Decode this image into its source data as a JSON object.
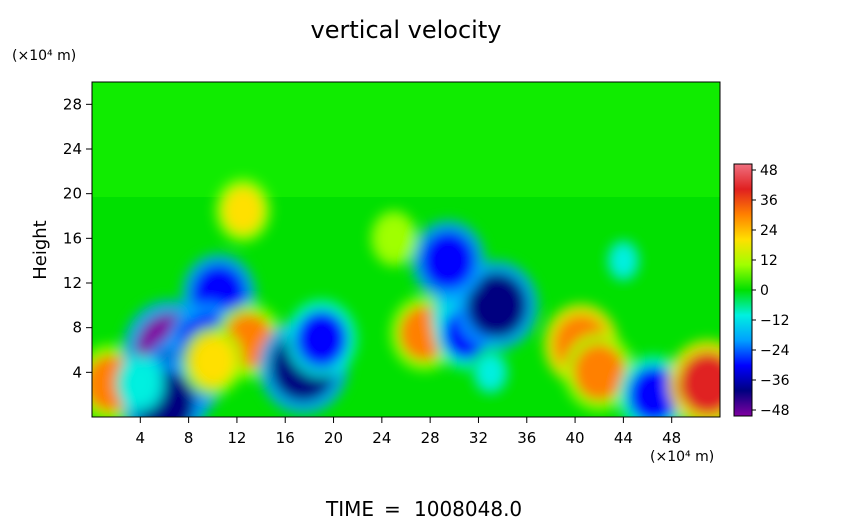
{
  "chart_data": {
    "type": "heatmap",
    "title": "vertical velocity",
    "ylabel": "Height",
    "y_unit_label": "(×10⁴ m)",
    "x_unit_label": "(×10⁴ m)",
    "xlim": [
      0,
      52
    ],
    "ylim": [
      0,
      30
    ],
    "x_ticks": [
      4,
      8,
      12,
      16,
      20,
      24,
      28,
      32,
      36,
      40,
      44,
      48
    ],
    "y_ticks": [
      4,
      8,
      12,
      16,
      20,
      24,
      28
    ],
    "colorbar": {
      "range": [
        -48,
        48
      ],
      "tick_values": [
        48,
        36,
        24,
        12,
        0,
        -12,
        -24,
        -36,
        -48
      ],
      "tick_labels": [
        "48",
        "36",
        "24",
        "12",
        "0",
        "−12",
        "−24",
        "−36",
        "−48"
      ],
      "colors": [
        "#f07080",
        "#e02020",
        "#ff8000",
        "#ffe000",
        "#a0ff00",
        "#00e000",
        "#00f0e0",
        "#00a0ff",
        "#0000ff",
        "#000080",
        "#8000a0"
      ]
    },
    "background_value": 0,
    "features": [
      {
        "x": 1.5,
        "y": 3,
        "value": 28
      },
      {
        "x": 6.5,
        "y": 6,
        "value": -44
      },
      {
        "x": 7.5,
        "y": 3.5,
        "value": -34
      },
      {
        "x": 6.0,
        "y": 1.2,
        "value": -36
      },
      {
        "x": 10.5,
        "y": 11,
        "value": -30
      },
      {
        "x": 9.5,
        "y": 6.5,
        "value": -32
      },
      {
        "x": 13.0,
        "y": 6.8,
        "value": 26
      },
      {
        "x": 10.0,
        "y": 5.0,
        "value": 22
      },
      {
        "x": 17.5,
        "y": 4.5,
        "value": -40
      },
      {
        "x": 19.0,
        "y": 7.0,
        "value": -28
      },
      {
        "x": 4.0,
        "y": 3.0,
        "value": -14
      },
      {
        "x": 12.5,
        "y": 18.5,
        "value": 18
      },
      {
        "x": 27.5,
        "y": 7.5,
        "value": 26
      },
      {
        "x": 30.5,
        "y": 9.0,
        "value": -20
      },
      {
        "x": 31.0,
        "y": 7.5,
        "value": -24
      },
      {
        "x": 33.5,
        "y": 10.0,
        "value": -36
      },
      {
        "x": 29.5,
        "y": 14.0,
        "value": -30
      },
      {
        "x": 40.5,
        "y": 6.5,
        "value": 30
      },
      {
        "x": 42.0,
        "y": 4.0,
        "value": 28
      },
      {
        "x": 46.5,
        "y": 2.0,
        "value": -28
      },
      {
        "x": 51.0,
        "y": 3.0,
        "value": 34
      },
      {
        "x": 25.0,
        "y": 16.0,
        "value": 12
      },
      {
        "x": 33.0,
        "y": 4.0,
        "value": -8
      },
      {
        "x": 44.0,
        "y": 14.0,
        "value": -6
      }
    ]
  },
  "footer": {
    "time_label": "TIME",
    "equals": "=",
    "time_value": "1008048.0"
  }
}
